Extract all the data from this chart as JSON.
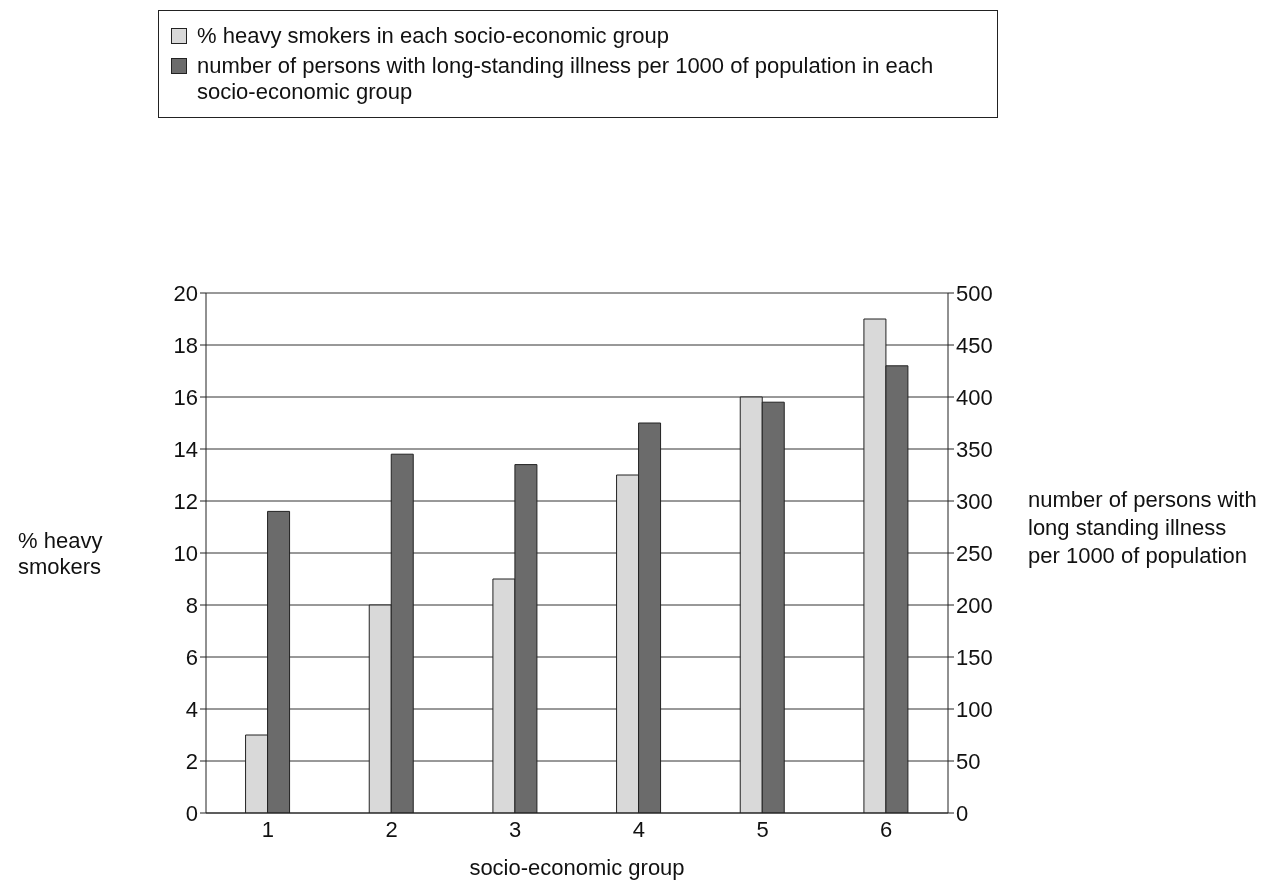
{
  "chart_data": {
    "type": "bar",
    "xlabel": "socio-economic group",
    "ylabel": "% heavy smokers",
    "y2label": "number of persons with long standing illness per 1000 of population",
    "categories": [
      "1",
      "2",
      "3",
      "4",
      "5",
      "6"
    ],
    "series": [
      {
        "name": "% heavy smokers in each socio-economic group",
        "color": "#d9d9d9",
        "values": [
          3,
          8,
          9,
          13,
          16,
          19
        ]
      },
      {
        "name": "number of persons with long-standing illness per 1000 of population in each socio-economic group",
        "color": "#6b6b6b",
        "axis": "y2",
        "values": [
          290,
          345,
          335,
          375,
          395,
          430
        ]
      }
    ],
    "ylim": [
      0,
      20
    ],
    "yticks": [
      0,
      2,
      4,
      6,
      8,
      10,
      12,
      14,
      16,
      18,
      20
    ],
    "y2lim": [
      0,
      500
    ],
    "y2ticks": [
      0,
      50,
      100,
      150,
      200,
      250,
      300,
      350,
      400,
      450,
      500
    ],
    "grid": "y",
    "legend": "top"
  }
}
